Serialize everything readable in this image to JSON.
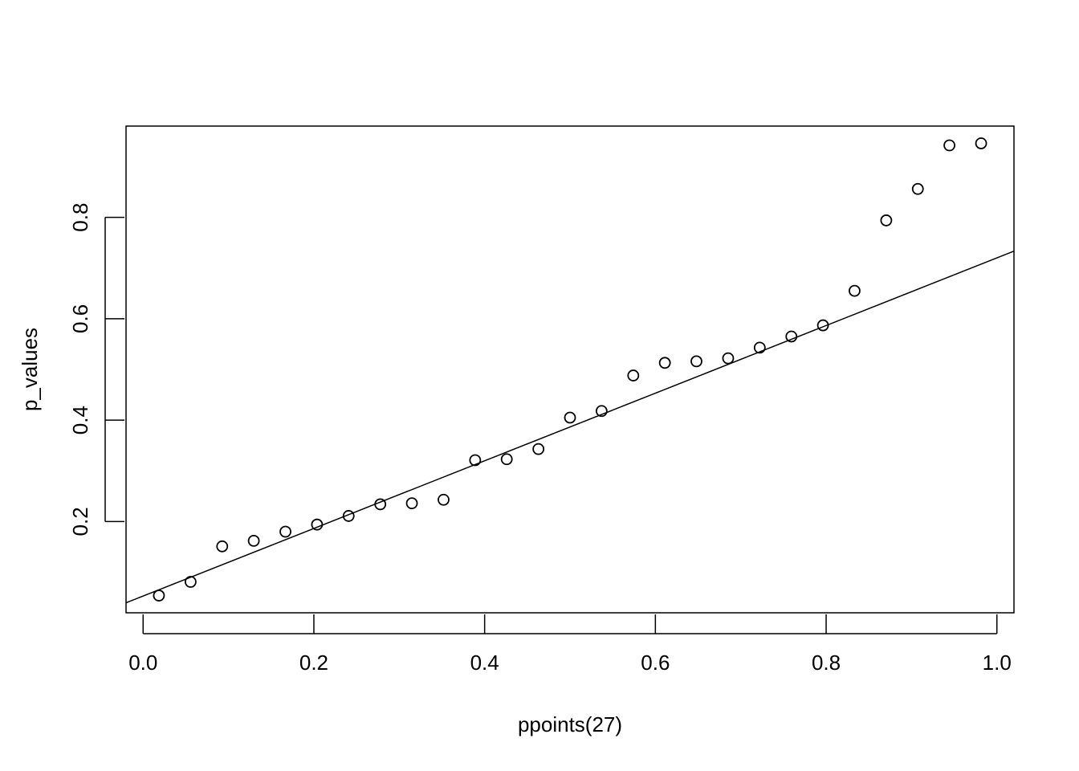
{
  "chart_data": {
    "type": "scatter",
    "title": "",
    "xlabel": "ppoints(27)",
    "ylabel": "p_values",
    "xlim": [
      -0.02,
      1.02
    ],
    "ylim": [
      0.02,
      0.98
    ],
    "xticks": [
      "0.0",
      "0.2",
      "0.4",
      "0.6",
      "0.8",
      "1.0"
    ],
    "xtick_values": [
      0.0,
      0.2,
      0.4,
      0.6,
      0.8,
      1.0
    ],
    "yticks": [
      "0.2",
      "0.4",
      "0.6",
      "0.8"
    ],
    "ytick_values": [
      0.2,
      0.4,
      0.6,
      0.8
    ],
    "grid": false,
    "points": {
      "x": [
        0.0185,
        0.0556,
        0.0926,
        0.1296,
        0.1667,
        0.2037,
        0.2407,
        0.2778,
        0.3148,
        0.3519,
        0.3889,
        0.4259,
        0.463,
        0.5,
        0.537,
        0.5741,
        0.6111,
        0.6481,
        0.6852,
        0.7222,
        0.7593,
        0.7963,
        0.8333,
        0.8704,
        0.9074,
        0.9444,
        0.9815
      ],
      "y": [
        0.054,
        0.081,
        0.151,
        0.162,
        0.18,
        0.194,
        0.211,
        0.234,
        0.236,
        0.243,
        0.321,
        0.323,
        0.343,
        0.405,
        0.418,
        0.488,
        0.513,
        0.516,
        0.522,
        0.543,
        0.565,
        0.587,
        0.655,
        0.794,
        0.856,
        0.942,
        0.946
      ]
    },
    "reference_line": {
      "intercept": 0.053,
      "slope": 0.667
    },
    "colors": {
      "points": "#000000",
      "line": "#000000",
      "frame": "#000000"
    }
  }
}
